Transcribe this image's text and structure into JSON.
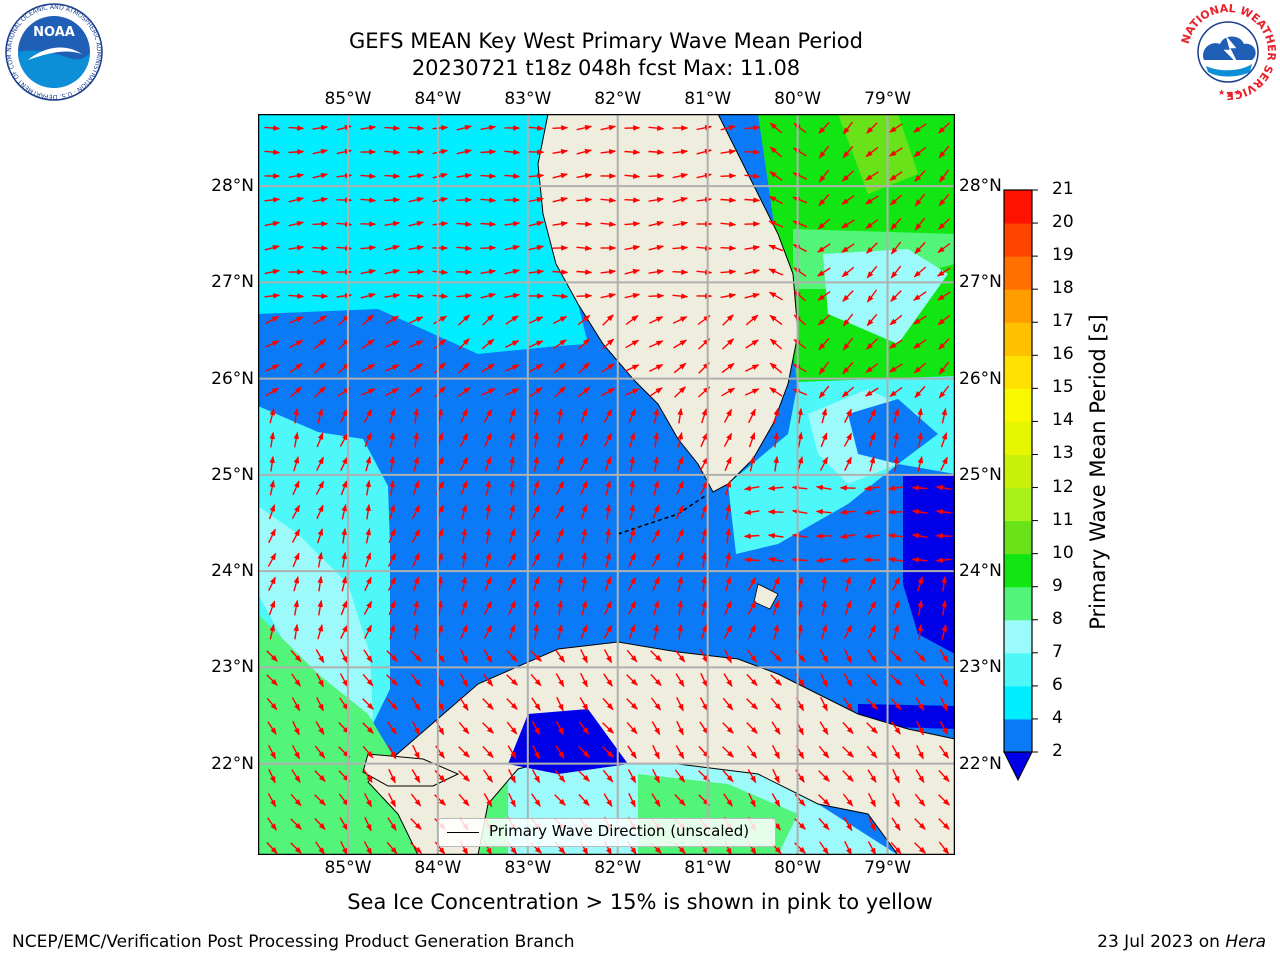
{
  "title": {
    "line1": "GEFS MEAN Key West Primary Wave Mean Period",
    "line2": "20230721 t18z 048h fcst   Max: 11.08"
  },
  "logos": {
    "noaa": {
      "text": "NOAA",
      "ring_text": "NATIONAL OCEANIC AND ATMOSPHERIC ADMINISTRATION · U.S. DEPARTMENT OF COMMERCE"
    },
    "nws": {
      "ring_text": "NATIONAL WEATHER SERVICE"
    }
  },
  "map": {
    "lon_labels": [
      "85°W",
      "84°W",
      "83°W",
      "82°W",
      "81°W",
      "80°W",
      "79°W"
    ],
    "lat_labels": [
      "28°N",
      "27°N",
      "26°N",
      "25°N",
      "24°N",
      "23°N",
      "22°N"
    ],
    "lon_range": [
      -86.0,
      -78.25
    ],
    "lat_range": [
      21.05,
      28.75
    ],
    "land_color": "#efedde",
    "arrow_color": "#ff0000",
    "grid_color": "#b0b0b0",
    "legend": {
      "label": "Primary Wave Direction (unscaled)"
    }
  },
  "colorbar": {
    "label": "Primary Wave Mean Period [s]",
    "ticks": [
      "2",
      "4",
      "6",
      "7",
      "8",
      "9",
      "10",
      "11",
      "12",
      "13",
      "14",
      "15",
      "16",
      "17",
      "18",
      "19",
      "20",
      "21"
    ],
    "colors": [
      "#0a7af7",
      "#00eeff",
      "#4ef8f8",
      "#9dfafa",
      "#52f57a",
      "#12e612",
      "#6ae21a",
      "#aaf01a",
      "#c8f00a",
      "#e6f500",
      "#f8f800",
      "#ffe000",
      "#ffc000",
      "#ff9c00",
      "#ff7000",
      "#ff4400",
      "#ff1200"
    ],
    "under_color": "#0000e8"
  },
  "caption": "Sea Ice Concentration > 15% is shown in pink to yellow",
  "footer": {
    "left": "NCEP/EMC/Verification Post Processing Product Generation Branch",
    "right_prefix": "23 Jul 2023 on ",
    "right_host": "Hera"
  }
}
